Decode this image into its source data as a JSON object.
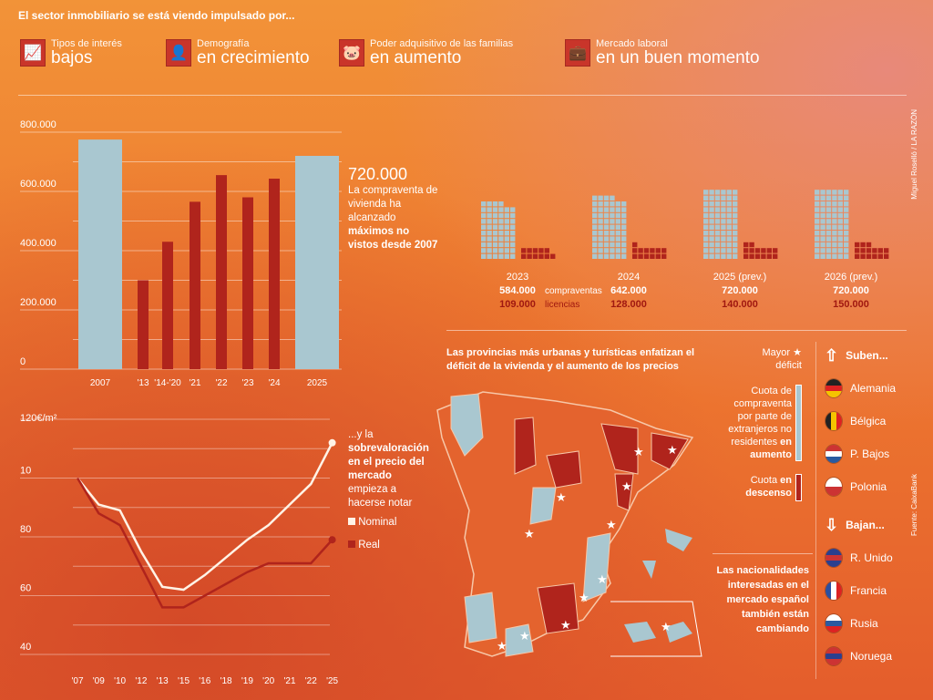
{
  "header": {
    "title": "El sector inmobiliario se está viendo impulsado por...",
    "drivers": [
      {
        "small": "Tipos de interés",
        "big": "bajos",
        "icon": "chart-up-icon"
      },
      {
        "small": "Demografía",
        "big": "en crecimiento",
        "icon": "person-icon"
      },
      {
        "small": "Poder adquisitivo de las familias",
        "big": "en aumento",
        "icon": "piggy-bank-icon"
      },
      {
        "small": "Mercado laboral",
        "big": "en un buen momento",
        "icon": "briefcase-icon"
      }
    ]
  },
  "credit": "Miguel Roselló / LA RAZÓN",
  "source": "Fuente: CaixaBank",
  "colors": {
    "light": "#a9c7d0",
    "red": "#b0241c",
    "white": "#fff3e6"
  },
  "chart_data": [
    {
      "type": "bar",
      "title": "Compraventa de vivienda",
      "categories": [
        "2007",
        "'13",
        "'14-'20",
        "'21",
        "'22",
        "'23",
        "'24",
        "2025"
      ],
      "values": [
        775000,
        300000,
        430000,
        565000,
        655000,
        580000,
        643000,
        720000
      ],
      "highlight": [
        true,
        false,
        false,
        false,
        false,
        false,
        false,
        true
      ],
      "yticks": [
        "0",
        "200.000",
        "400.000",
        "600.000",
        "800.000"
      ],
      "ylim": [
        0,
        800000
      ],
      "annotation": {
        "value": "720.000",
        "text1": "La compraventa de vivienda ha alcanzado",
        "bold": "máximos no vistos desde 2007"
      }
    },
    {
      "type": "line",
      "title": "Precio €/m²",
      "ylabel": "120€/m²",
      "yticks": [
        "40",
        "60",
        "80",
        "10"
      ],
      "ylim": [
        40,
        120
      ],
      "categories": [
        "'07",
        "'09",
        "'10",
        "'12",
        "'13",
        "'15",
        "'16",
        "'18",
        "'19",
        "'20",
        "'21",
        "'22",
        "'25"
      ],
      "series": [
        {
          "name": "Nominal",
          "values": [
            100,
            91,
            89,
            75,
            63,
            62,
            67,
            73,
            79,
            84,
            91,
            98,
            112
          ]
        },
        {
          "name": "Real",
          "values": [
            100,
            88,
            84,
            70,
            56,
            56,
            60,
            64,
            68,
            71,
            71,
            71,
            79
          ]
        }
      ],
      "annotation": {
        "text1": "...y la",
        "bold": "sobrevaloración en el precio del mercado",
        "text2": "empieza a hacerse notar"
      }
    },
    {
      "type": "bar",
      "title": "Compraventas y licencias",
      "categories": [
        "2023",
        "2024",
        "2025 (prev.)",
        "2026 (prev.)"
      ],
      "series": [
        {
          "name": "compraventas",
          "values": [
            584000,
            642000,
            720000,
            720000
          ],
          "labels": [
            "584.000",
            "642.000",
            "720.000",
            "720.000"
          ]
        },
        {
          "name": "licencias",
          "values": [
            109000,
            128000,
            140000,
            150000
          ],
          "labels": [
            "109.000",
            "128.000",
            "140.000",
            "150.000"
          ]
        }
      ]
    }
  ],
  "map": {
    "title": "Las provincias más urbanas y turísticas enfatizan el déficit de la vivienda y el aumento de los precios",
    "legend_deficit_a": "Mayor",
    "legend_deficit_b": "déficit",
    "legend_up": "Cuota de compraventa por parte de extranjeros no residentes",
    "legend_up_bold": "en aumento",
    "legend_down": "Cuota",
    "legend_down_bold": "en descenso"
  },
  "nationalities": {
    "intro": "Las nacionalidades interesadas en el mercado español también están cambiando",
    "up_label": "Suben...",
    "down_label": "Bajan...",
    "up": [
      {
        "name": "Alemania",
        "colors": [
          "#222",
          "#d22",
          "#f5c400"
        ]
      },
      {
        "name": "Bélgica",
        "colors": [
          "#222",
          "#f5c400",
          "#d22"
        ],
        "vertical": true
      },
      {
        "name": "P. Bajos",
        "colors": [
          "#c33",
          "#fff",
          "#2a5aa0"
        ]
      },
      {
        "name": "Polonia",
        "colors": [
          "#fff",
          "#c33"
        ]
      }
    ],
    "down": [
      {
        "name": "R. Unido",
        "colors": [
          "#2a3f8f",
          "#c33",
          "#2a3f8f"
        ]
      },
      {
        "name": "Francia",
        "colors": [
          "#2a4fa0",
          "#fff",
          "#d22"
        ],
        "vertical": true
      },
      {
        "name": "Rusia",
        "colors": [
          "#fff",
          "#2a5aa0",
          "#d22"
        ]
      },
      {
        "name": "Noruega",
        "colors": [
          "#c33",
          "#2a3f8f",
          "#c33"
        ]
      }
    ]
  }
}
